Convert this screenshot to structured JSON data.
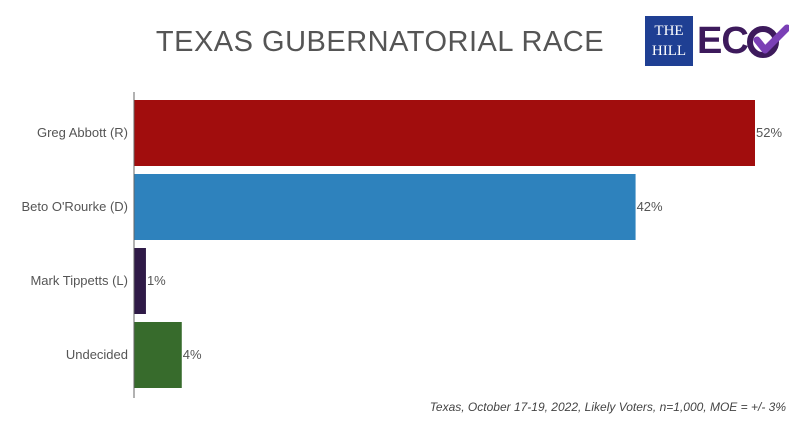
{
  "logo": {
    "hill_line1": "THE",
    "hill_line2": "HILL",
    "ec_text": "EC",
    "hill_color": "#1f3f93",
    "ec_color": "#3d1a5c",
    "check_color": "#7a3fb5"
  },
  "footnote": "Texas, October 17-19, 2022, Likely Voters, n=1,000, MOE = +/- 3%",
  "chart_data": {
    "type": "bar",
    "orientation": "horizontal",
    "title": "TEXAS GUBERNATORIAL RACE",
    "categories": [
      "Greg Abbott (R)",
      "Beto O'Rourke (D)",
      "Mark Tippetts (L)",
      "Undecided"
    ],
    "values": [
      52,
      42,
      1,
      4
    ],
    "value_labels": [
      "52%",
      "42%",
      "1%",
      "4%"
    ],
    "colors": [
      "#a10d0d",
      "#2e82bd",
      "#2f1a47",
      "#376b2c"
    ],
    "xlim": [
      0,
      52
    ],
    "unit": "%",
    "grid": false,
    "legend": "none"
  }
}
